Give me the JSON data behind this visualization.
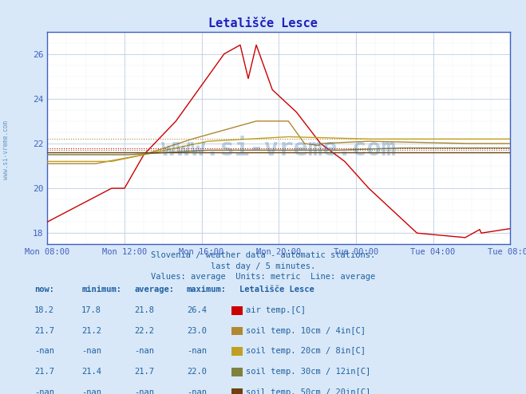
{
  "title": "Letališče Lesce",
  "bg_color": "#d8e8f8",
  "plot_bg_color": "#ffffff",
  "grid_color_major": "#c0d0e0",
  "grid_color_minor": "#e8eef4",
  "title_color": "#2020c0",
  "axis_color": "#4060c0",
  "text_color": "#2060a0",
  "subtitle_lines": [
    "Slovenia / weather data - automatic stations.",
    "last day / 5 minutes.",
    "Values: average  Units: metric  Line: average"
  ],
  "xlim": [
    0,
    288
  ],
  "ylim": [
    17.5,
    27
  ],
  "yticks": [
    18,
    20,
    22,
    24,
    26
  ],
  "xtick_positions": [
    0,
    48,
    96,
    144,
    192,
    240,
    288
  ],
  "xtick_labels": [
    "Mon 08:00",
    "Mon 12:00",
    "Mon 16:00",
    "Mon 20:00",
    "Tue 00:00",
    "Tue 04:00",
    "Tue 08:00"
  ],
  "legend_colors": [
    "#cc0000",
    "#b08830",
    "#c0a020",
    "#808040",
    "#704010"
  ],
  "legend_labels": [
    "air temp.[C]",
    "soil temp. 10cm / 4in[C]",
    "soil temp. 20cm / 8in[C]",
    "soil temp. 30cm / 12in[C]",
    "soil temp. 50cm / 20in[C]"
  ],
  "table_header": [
    "now:",
    "minimum:",
    "average:",
    "maximum:",
    "Letališče Lesce"
  ],
  "table_rows": [
    [
      "18.2",
      "17.8",
      "21.8",
      "26.4",
      "air temp.[C]"
    ],
    [
      "21.7",
      "21.2",
      "22.2",
      "23.0",
      "soil temp. 10cm / 4in[C]"
    ],
    [
      "-nan",
      "-nan",
      "-nan",
      "-nan",
      "soil temp. 20cm / 8in[C]"
    ],
    [
      "21.7",
      "21.4",
      "21.7",
      "22.0",
      "soil temp. 30cm / 12in[C]"
    ],
    [
      "-nan",
      "-nan",
      "-nan",
      "-nan",
      "soil temp. 50cm / 20in[C]"
    ]
  ],
  "watermark": "www.si-vreme.com",
  "watermark_color": "#2060a0",
  "series_colors": [
    "#cc0000",
    "#b08830",
    "#c0a020",
    "#808040",
    "#704010"
  ],
  "avg_lines": [
    21.8,
    22.2,
    null,
    21.7,
    null
  ]
}
